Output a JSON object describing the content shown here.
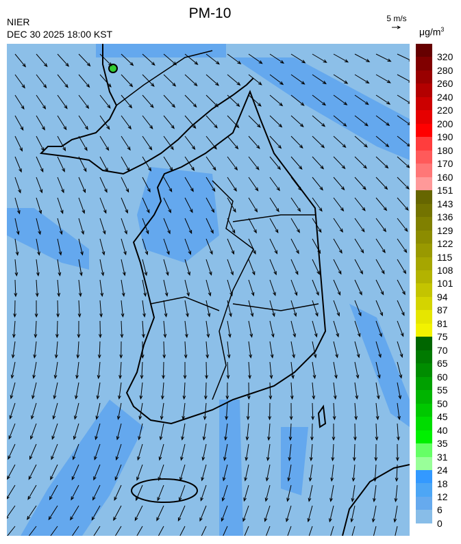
{
  "header": {
    "title": "PM-10",
    "organization": "NIER",
    "datetime": "DEC 30 2025 18:00 KST"
  },
  "wind_scale": {
    "label": "5 m/s",
    "icon": "wind-reference-arrow-icon"
  },
  "legend": {
    "unit": "μg/m",
    "unit_sup": "3",
    "labels": [
      "320",
      "280",
      "260",
      "240",
      "220",
      "200",
      "190",
      "180",
      "170",
      "160",
      "151",
      "143",
      "136",
      "129",
      "122",
      "115",
      "108",
      "101",
      "94",
      "87",
      "81",
      "75",
      "70",
      "65",
      "60",
      "55",
      "50",
      "45",
      "40",
      "35",
      "31",
      "24",
      "18",
      "12",
      "6",
      "0"
    ],
    "colors": [
      "#660000",
      "#800000",
      "#990000",
      "#b30000",
      "#cc0000",
      "#e60000",
      "#ff0000",
      "#ff3d3d",
      "#ff5a5a",
      "#ff7777",
      "#ff9999",
      "#666600",
      "#737300",
      "#808000",
      "#8c8c00",
      "#999900",
      "#a6a600",
      "#b3b300",
      "#c4c400",
      "#d4d400",
      "#e6e600",
      "#f2f200",
      "#006600",
      "#007a00",
      "#008c00",
      "#00a000",
      "#00b400",
      "#00c800",
      "#00dc00",
      "#00f000",
      "#66ff66",
      "#99ff99",
      "#3399ff",
      "#4da6f5",
      "#66aaee",
      "#88bde8",
      "#99cce6"
    ]
  },
  "map": {
    "background_color": "#8cbfe8",
    "patch_color": "#64a8ee",
    "hotspot_color": "#33cc33"
  }
}
